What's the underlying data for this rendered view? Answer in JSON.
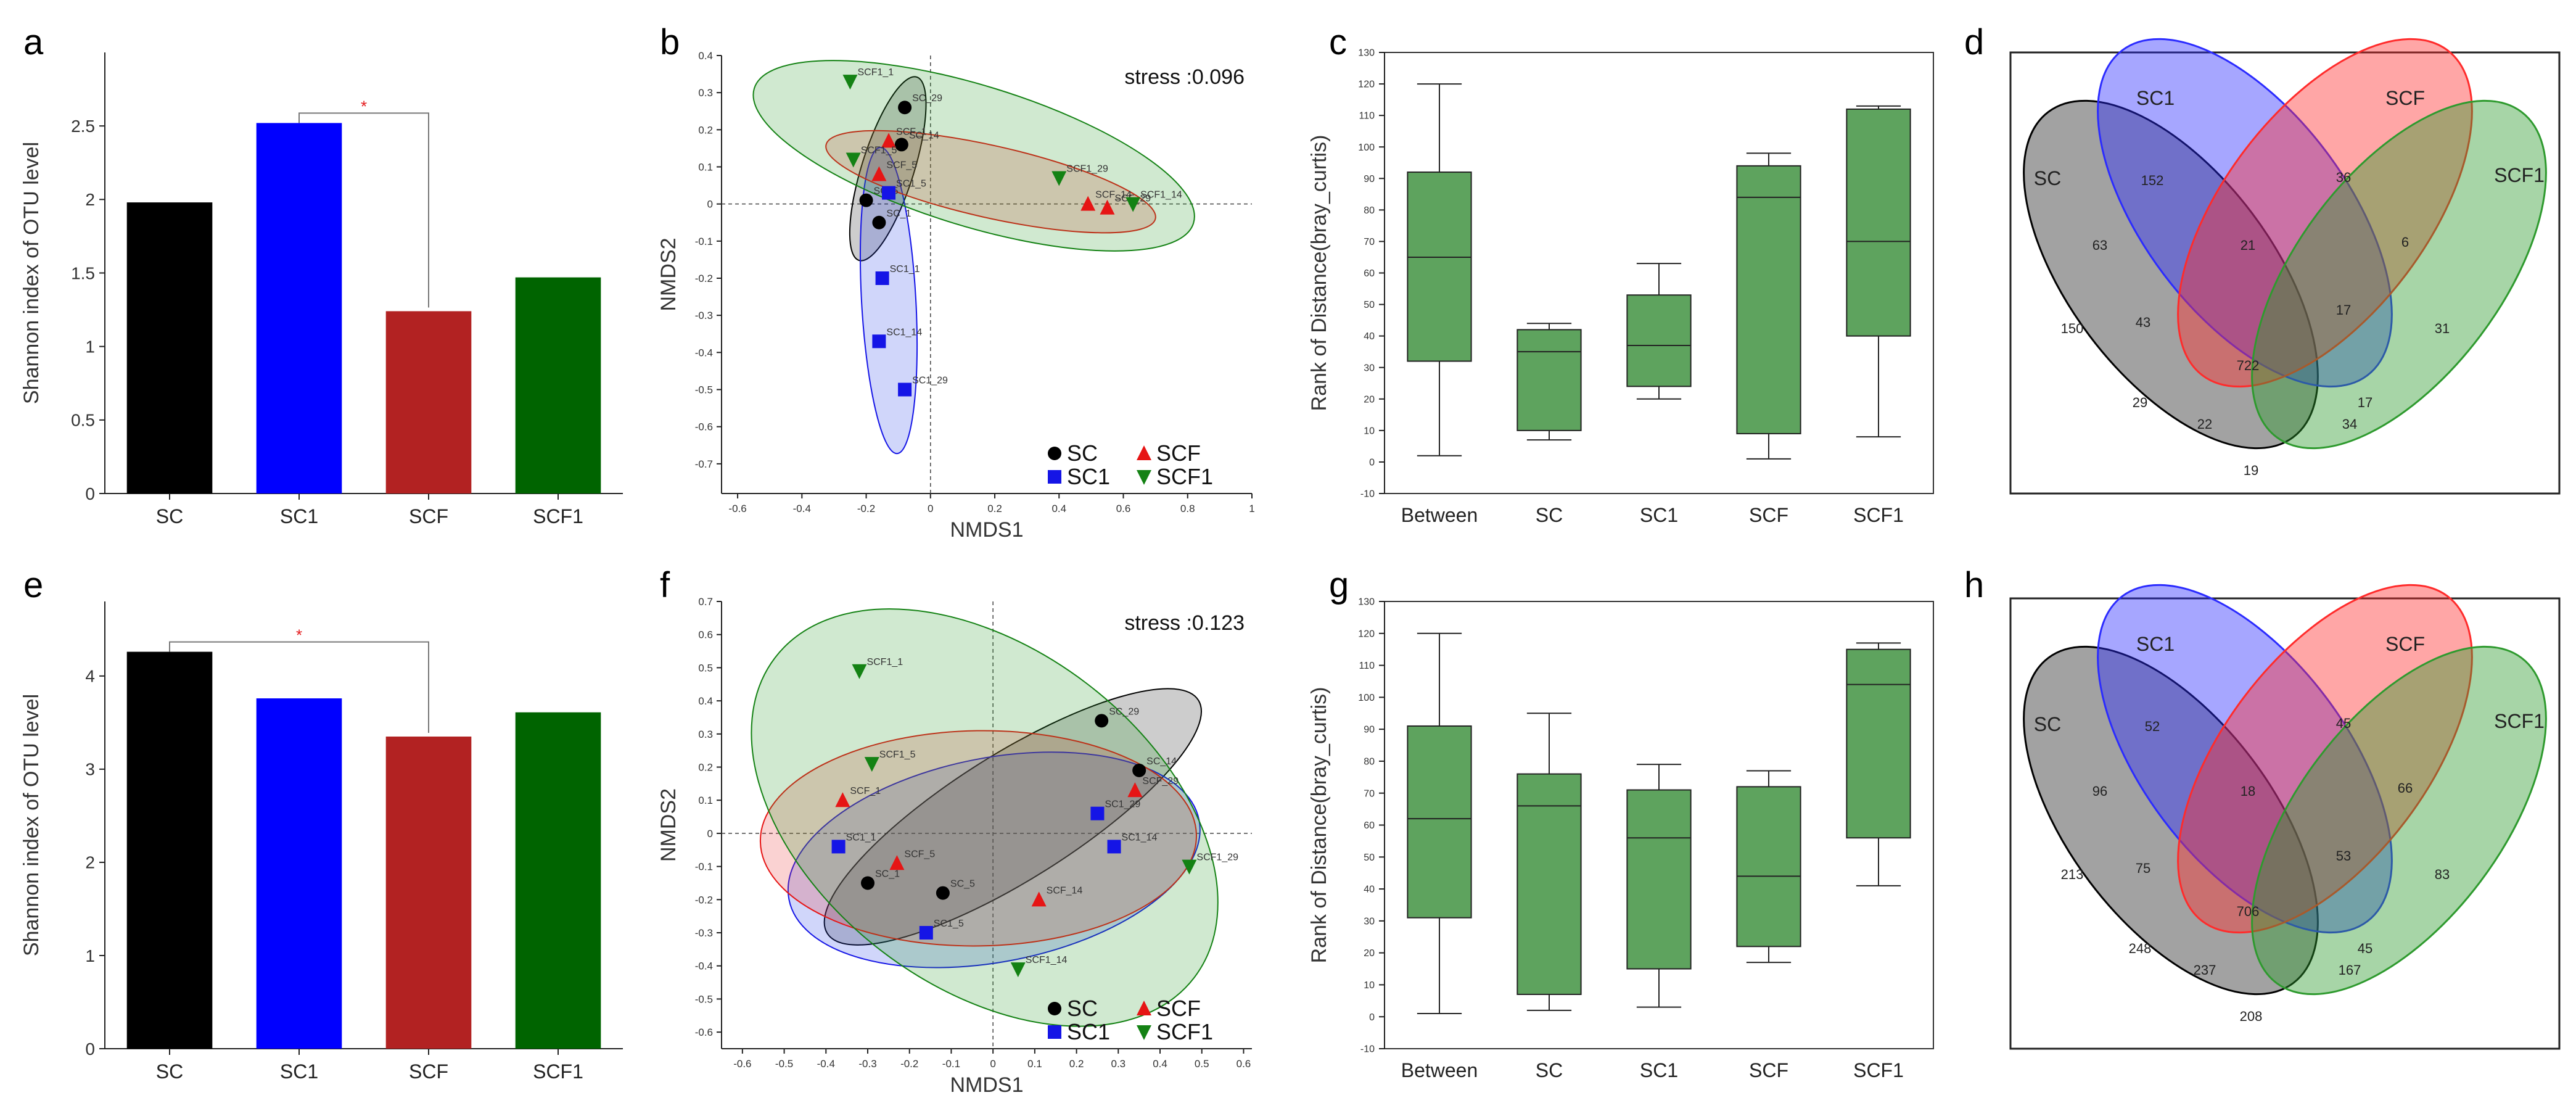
{
  "figure": {
    "panel_letters": [
      "a",
      "b",
      "c",
      "d",
      "e",
      "f",
      "g",
      "h"
    ],
    "colors": {
      "SC": "#000000",
      "SC1": "#0000ff",
      "SCF": "#b22222",
      "SCF1": "#006400",
      "box": "#5ea35e",
      "sig": "#e41a1c"
    },
    "marker_colors": {
      "SC": "#000000",
      "SC1": "#1515e6",
      "SCF": "#e61515",
      "SCF1": "#148214"
    }
  },
  "chart_data": [
    {
      "panel": "a",
      "type": "bar",
      "categories": [
        "SC",
        "SC1",
        "SCF",
        "SCF1"
      ],
      "values": [
        1.98,
        2.52,
        1.24,
        1.47
      ],
      "ylabel": "Shannon index of OTU level",
      "ylim": [
        0,
        3
      ],
      "yticks": [
        0,
        0.5,
        1,
        1.5,
        2,
        2.5
      ],
      "ytick_labels": [
        "0",
        "0.5",
        "1",
        "1.5",
        "2",
        "2.5"
      ],
      "significance": {
        "pair": [
          "SC1",
          "SCF"
        ],
        "label": "*"
      }
    },
    {
      "panel": "b",
      "type": "scatter",
      "xlabel": "NMDS1",
      "ylabel": "NMDS2",
      "stress_label": "stress :0.096",
      "xlim": [
        -0.65,
        1.0
      ],
      "ylim": [
        -0.78,
        0.4
      ],
      "xticks": [
        -0.6,
        -0.4,
        -0.2,
        0,
        0.2,
        0.4,
        0.6,
        0.8,
        1
      ],
      "xtick_labels": [
        "-0.6",
        "-0.4",
        "-0.2",
        "0",
        "0.2",
        "0.4",
        "0.6",
        "0.8",
        "1"
      ],
      "yticks": [
        -0.7,
        -0.6,
        -0.5,
        -0.4,
        -0.3,
        -0.2,
        -0.1,
        0,
        0.1,
        0.2,
        0.3,
        0.4
      ],
      "ytick_labels": [
        "-0.7",
        "-0.6",
        "-0.5",
        "-0.4",
        "-0.3",
        "-0.2",
        "-0.1",
        "0",
        "0.1",
        "0.2",
        "0.3",
        "0.4"
      ],
      "legend": [
        "SC",
        "SCF",
        "SC1",
        "SCF1"
      ],
      "series": [
        {
          "name": "SC",
          "marker": "circle",
          "points": [
            {
              "x": -0.08,
              "y": 0.26,
              "label": "SC_29"
            },
            {
              "x": -0.09,
              "y": 0.16,
              "label": "SC_14"
            },
            {
              "x": -0.2,
              "y": 0.01,
              "label": "SC_5"
            },
            {
              "x": -0.16,
              "y": -0.05,
              "label": "SC_1"
            }
          ]
        },
        {
          "name": "SC1",
          "marker": "square",
          "points": [
            {
              "x": -0.13,
              "y": 0.03,
              "label": "SC1_5"
            },
            {
              "x": -0.15,
              "y": -0.2,
              "label": "SC1_1"
            },
            {
              "x": -0.16,
              "y": -0.37,
              "label": "SC1_14"
            },
            {
              "x": -0.08,
              "y": -0.5,
              "label": "SC1_29"
            }
          ]
        },
        {
          "name": "SCF",
          "marker": "triangle-up",
          "points": [
            {
              "x": -0.13,
              "y": 0.17,
              "label": "SCF_1"
            },
            {
              "x": -0.16,
              "y": 0.08,
              "label": "SCF_5"
            },
            {
              "x": 0.49,
              "y": 0.0,
              "label": "SCF_14"
            },
            {
              "x": 0.55,
              "y": -0.01,
              "label": "SCF_29"
            }
          ]
        },
        {
          "name": "SCF1",
          "marker": "triangle-down",
          "points": [
            {
              "x": -0.25,
              "y": 0.33,
              "label": "SCF1_1"
            },
            {
              "x": -0.24,
              "y": 0.12,
              "label": "SCF1_5"
            },
            {
              "x": 0.4,
              "y": 0.07,
              "label": "SCF1_29"
            },
            {
              "x": 0.63,
              "y": 0.0,
              "label": "SCF1_14"
            }
          ]
        }
      ]
    },
    {
      "panel": "c",
      "type": "box",
      "categories": [
        "Between",
        "SC",
        "SC1",
        "SCF",
        "SCF1"
      ],
      "boxes": [
        {
          "min": 2,
          "q1": 32,
          "median": 65,
          "q3": 92,
          "max": 120
        },
        {
          "min": 7,
          "q1": 10,
          "median": 35,
          "q3": 42,
          "max": 44
        },
        {
          "min": 20,
          "q1": 24,
          "median": 37,
          "q3": 53,
          "max": 63
        },
        {
          "min": 1,
          "q1": 9,
          "median": 84,
          "q3": 94,
          "max": 98
        },
        {
          "min": 8,
          "q1": 40,
          "median": 70,
          "q3": 112,
          "max": 113
        }
      ],
      "ylabel": "Rank of Distance(bray_curtis)",
      "ylim": [
        -10,
        130
      ],
      "yticks": [
        -10,
        0,
        10,
        20,
        30,
        40,
        50,
        60,
        70,
        80,
        90,
        100,
        110,
        120,
        130
      ],
      "ytick_labels": [
        "-10",
        "0",
        "10",
        "20",
        "30",
        "40",
        "50",
        "60",
        "70",
        "80",
        "90",
        "100",
        "110",
        "120",
        "130"
      ]
    },
    {
      "panel": "d",
      "type": "venn",
      "set_labels": [
        "SC",
        "SC1",
        "SCF",
        "SCF1"
      ],
      "region_labels": [
        "150",
        "152",
        "36",
        "31",
        "63",
        "21",
        "6",
        "43",
        "17",
        "722",
        "29",
        "22",
        "19",
        "34",
        "17"
      ]
    },
    {
      "panel": "e",
      "type": "bar",
      "categories": [
        "SC",
        "SC1",
        "SCF",
        "SCF1"
      ],
      "values": [
        4.26,
        3.76,
        3.35,
        3.61
      ],
      "ylabel": "Shannon index of OTU level",
      "ylim": [
        0,
        4.8
      ],
      "yticks": [
        0,
        1,
        2,
        3,
        4
      ],
      "ytick_labels": [
        "0",
        "1",
        "2",
        "3",
        "4"
      ],
      "significance": {
        "pair": [
          "SC",
          "SCF"
        ],
        "label": "*"
      }
    },
    {
      "panel": "f",
      "type": "scatter",
      "xlabel": "NMDS1",
      "ylabel": "NMDS2",
      "stress_label": "stress :0.123",
      "xlim": [
        -0.65,
        0.62
      ],
      "ylim": [
        -0.65,
        0.7
      ],
      "xticks": [
        -0.6,
        -0.5,
        -0.4,
        -0.3,
        -0.2,
        -0.1,
        0,
        0.1,
        0.2,
        0.3,
        0.4,
        0.5,
        0.6
      ],
      "xtick_labels": [
        "-0.6",
        "-0.5",
        "-0.4",
        "-0.3",
        "-0.2",
        "-0.1",
        "0",
        "0.1",
        "0.2",
        "0.3",
        "0.4",
        "0.5",
        "0.6"
      ],
      "yticks": [
        -0.6,
        -0.5,
        -0.4,
        -0.3,
        -0.2,
        -0.1,
        0,
        0.1,
        0.2,
        0.3,
        0.4,
        0.5,
        0.6,
        0.7
      ],
      "ytick_labels": [
        "-0.6",
        "-0.5",
        "-0.4",
        "-0.3",
        "-0.2",
        "-0.1",
        "0",
        "0.1",
        "0.2",
        "0.3",
        "0.4",
        "0.5",
        "0.6",
        "0.7"
      ],
      "legend": [
        "SC",
        "SCF",
        "SC1",
        "SCF1"
      ],
      "series": [
        {
          "name": "SC",
          "marker": "circle",
          "points": [
            {
              "x": 0.26,
              "y": 0.34,
              "label": "SC_29"
            },
            {
              "x": 0.35,
              "y": 0.19,
              "label": "SC_14"
            },
            {
              "x": -0.3,
              "y": -0.15,
              "label": "SC_1"
            },
            {
              "x": -0.12,
              "y": -0.18,
              "label": "SC_5"
            }
          ]
        },
        {
          "name": "SC1",
          "marker": "square",
          "points": [
            {
              "x": 0.25,
              "y": 0.06,
              "label": "SC1_29"
            },
            {
              "x": 0.29,
              "y": -0.04,
              "label": "SC1_14"
            },
            {
              "x": -0.37,
              "y": -0.04,
              "label": "SC1_1"
            },
            {
              "x": -0.16,
              "y": -0.3,
              "label": "SC1_5"
            }
          ]
        },
        {
          "name": "SCF",
          "marker": "triangle-up",
          "points": [
            {
              "x": -0.36,
              "y": 0.1,
              "label": "SCF_1"
            },
            {
              "x": -0.23,
              "y": -0.09,
              "label": "SCF_5"
            },
            {
              "x": 0.11,
              "y": -0.2,
              "label": "SCF_14"
            },
            {
              "x": 0.34,
              "y": 0.13,
              "label": "SCF_29"
            }
          ]
        },
        {
          "name": "SCF1",
          "marker": "triangle-down",
          "points": [
            {
              "x": -0.32,
              "y": 0.49,
              "label": "SCF1_1"
            },
            {
              "x": -0.29,
              "y": 0.21,
              "label": "SCF1_5"
            },
            {
              "x": 0.47,
              "y": -0.1,
              "label": "SCF1_29"
            },
            {
              "x": 0.06,
              "y": -0.41,
              "label": "SCF1_14"
            }
          ]
        }
      ]
    },
    {
      "panel": "g",
      "type": "box",
      "categories": [
        "Between",
        "SC",
        "SC1",
        "SCF",
        "SCF1"
      ],
      "boxes": [
        {
          "min": 1,
          "q1": 31,
          "median": 62,
          "q3": 91,
          "max": 120
        },
        {
          "min": 2,
          "q1": 7,
          "median": 66,
          "q3": 76,
          "max": 95
        },
        {
          "min": 3,
          "q1": 15,
          "median": 56,
          "q3": 71,
          "max": 79
        },
        {
          "min": 17,
          "q1": 22,
          "median": 44,
          "q3": 72,
          "max": 77
        },
        {
          "min": 41,
          "q1": 56,
          "median": 104,
          "q3": 115,
          "max": 117
        }
      ],
      "ylabel": "Rank of Distance(bray_curtis)",
      "ylim": [
        -10,
        130
      ],
      "yticks": [
        -10,
        0,
        10,
        20,
        30,
        40,
        50,
        60,
        70,
        80,
        90,
        100,
        110,
        120,
        130
      ],
      "ytick_labels": [
        "-10",
        "0",
        "10",
        "20",
        "30",
        "40",
        "50",
        "60",
        "70",
        "80",
        "90",
        "100",
        "110",
        "120",
        "130"
      ]
    },
    {
      "panel": "h",
      "type": "venn",
      "set_labels": [
        "SC",
        "SC1",
        "SCF",
        "SCF1"
      ],
      "region_labels": [
        "213",
        "52",
        "45",
        "83",
        "96",
        "18",
        "66",
        "75",
        "53",
        "706",
        "248",
        "237",
        "208",
        "167",
        "45"
      ]
    }
  ]
}
